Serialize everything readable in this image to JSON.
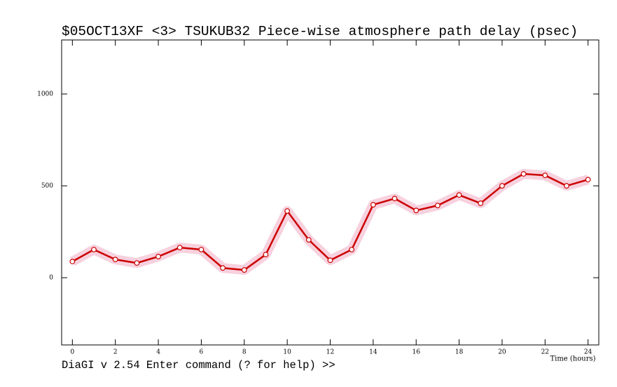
{
  "chart_data": {
    "type": "line",
    "title": "$05OCT13XF <3>  TSUKUB32  Piece-wise atmosphere path delay (psec)",
    "x_label": "Time (hours)",
    "status": "DiaGI v 2.54  Enter command (? for help) >>",
    "x": [
      0,
      1,
      2,
      3,
      4,
      5,
      6,
      7,
      8,
      9,
      10,
      11,
      12,
      13,
      14,
      15,
      16,
      17,
      18,
      19,
      20,
      21,
      22,
      23,
      24
    ],
    "series": [
      {
        "color": "#cc0000",
        "values": [
          88,
          153,
          99,
          80,
          115,
          164,
          153,
          53,
          42,
          126,
          363,
          206,
          95,
          153,
          397,
          431,
          366,
          393,
          450,
          405,
          500,
          565,
          557,
          500,
          534
        ]
      }
    ],
    "xlim": [
      -0.5,
      24.5
    ],
    "xticks": [
      0,
      2,
      4,
      6,
      8,
      10,
      12,
      14,
      16,
      18,
      20,
      22,
      24
    ],
    "ylim": [
      -366,
      1294
    ],
    "yticks": [
      0,
      500,
      1000
    ]
  }
}
